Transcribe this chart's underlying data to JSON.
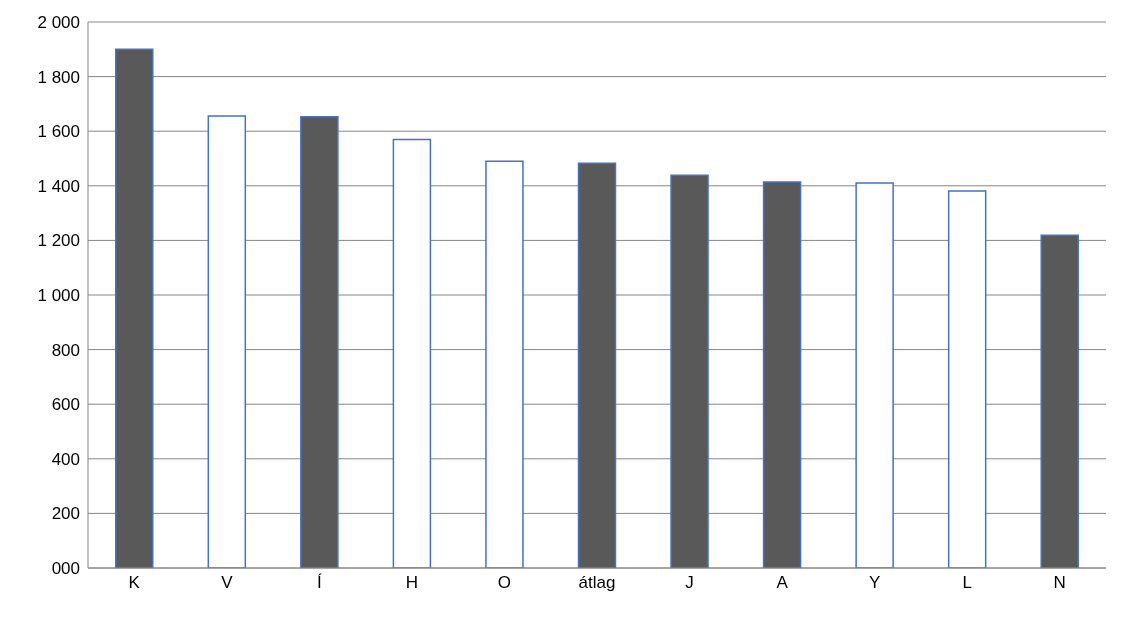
{
  "chart_data": {
    "type": "bar",
    "categories": [
      "K",
      "V",
      "Í",
      "H",
      "O",
      "átlag",
      "J",
      "A",
      "Y",
      "L",
      "N"
    ],
    "values": [
      1900,
      1656,
      1653,
      1570,
      1490,
      1483,
      1439,
      1414,
      1410,
      1381,
      1219
    ],
    "colors": [
      "#595959",
      "#ffffff",
      "#595959",
      "#ffffff",
      "#ffffff",
      "#595959",
      "#595959",
      "#595959",
      "#ffffff",
      "#ffffff",
      "#595959"
    ],
    "ylim": [
      0,
      2000
    ],
    "yticks": [
      {
        "value": 0,
        "label": "000"
      },
      {
        "value": 200,
        "label": "200"
      },
      {
        "value": 400,
        "label": "400"
      },
      {
        "value": 600,
        "label": "600"
      },
      {
        "value": 800,
        "label": "800"
      },
      {
        "value": 1000,
        "label": "1 000"
      },
      {
        "value": 1200,
        "label": "1 200"
      },
      {
        "value": 1400,
        "label": "1 400"
      },
      {
        "value": 1600,
        "label": "1 600"
      },
      {
        "value": 1800,
        "label": "1 800"
      },
      {
        "value": 2000,
        "label": "2 000"
      }
    ],
    "grid": "y"
  }
}
